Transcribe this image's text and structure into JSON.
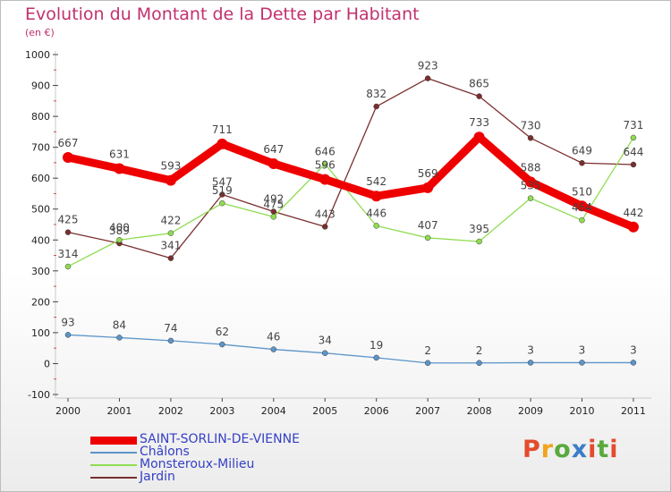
{
  "title": "Evolution du Montant de la Dette par Habitant",
  "unit_label": "(en €)",
  "logo": {
    "text": "Proxiti",
    "colors": [
      "#e34b2d",
      "#f2a31b",
      "#59a93c",
      "#3b7dc9",
      "#e34b2d",
      "#59a93c",
      "#e34b2d"
    ]
  },
  "chart_data": {
    "type": "line",
    "title": "Evolution du Montant de la Dette par Habitant",
    "ylabel": "(en €)",
    "xlabel": "",
    "x": [
      "2000",
      "2001",
      "2002",
      "2003",
      "2004",
      "2005",
      "2006",
      "2007",
      "2008",
      "2009",
      "2010",
      "2011"
    ],
    "ylim": [
      -100,
      1000
    ],
    "yticks": [
      "-100",
      "0",
      "100",
      "200",
      "300",
      "400",
      "500",
      "600",
      "700",
      "800",
      "900",
      "1000"
    ],
    "grid": false,
    "legend_position": "bottom-left",
    "series": [
      {
        "name": "SAINT-SORLIN-DE-VIENNE",
        "color": "#ef0000",
        "values": [
          667,
          631,
          593,
          711,
          647,
          596,
          542,
          569,
          733,
          588,
          510,
          442
        ],
        "labels": [
          "667",
          "631",
          "593",
          "711",
          "647",
          "596",
          "542",
          "569",
          "733",
          "588",
          "510",
          "442"
        ]
      },
      {
        "name": "Châlons",
        "color": "#5b95c9",
        "values": [
          93,
          84,
          74,
          62,
          46,
          34,
          19,
          2,
          2,
          3,
          3,
          3
        ],
        "labels": [
          "93",
          "84",
          "74",
          "62",
          "46",
          "34",
          "19",
          "2",
          "2",
          "3",
          "3",
          "3"
        ]
      },
      {
        "name": "Monsteroux-Milieu",
        "color": "#8fdc51",
        "values": [
          314,
          400,
          422,
          519,
          475,
          646,
          446,
          407,
          395,
          535,
          464,
          731
        ],
        "labels": [
          "314",
          "400",
          "422",
          "519",
          "475",
          "646",
          "446",
          "407",
          "395",
          "535",
          "464",
          "731"
        ]
      },
      {
        "name": "Jardin",
        "color": "#7a2e2e",
        "values": [
          425,
          389,
          341,
          547,
          492,
          443,
          832,
          923,
          865,
          730,
          649,
          644
        ],
        "labels": [
          "425",
          "389",
          "341",
          "547",
          "492",
          "443",
          "832",
          "923",
          "865",
          "730",
          "649",
          "644"
        ]
      }
    ]
  }
}
